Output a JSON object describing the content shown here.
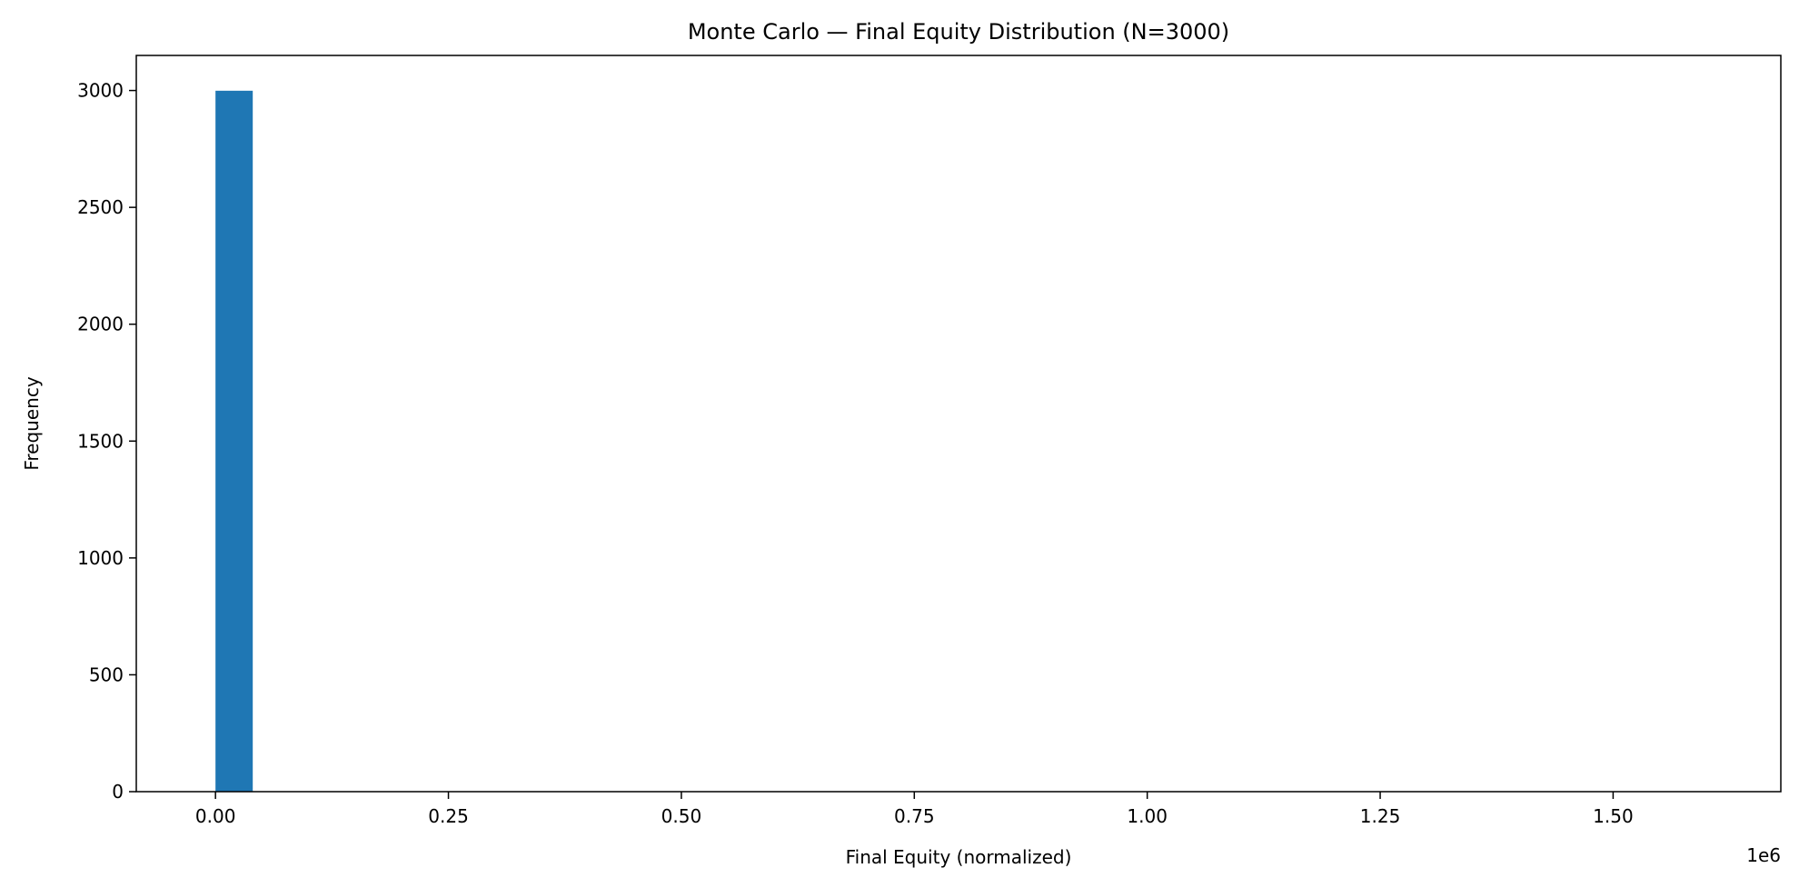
{
  "chart_data": {
    "type": "bar",
    "title": "Monte Carlo — Final Equity Distribution (N=3000)",
    "xlabel": "Final Equity (normalized)",
    "ylabel": "Frequency",
    "x_offset_label": "1e6",
    "xlim": [
      -85000,
      1680000
    ],
    "ylim": [
      0,
      3150
    ],
    "x_ticks": [
      0,
      250000,
      500000,
      750000,
      1000000,
      1250000,
      1500000
    ],
    "x_tick_labels": [
      "0.00",
      "0.25",
      "0.50",
      "0.75",
      "1.00",
      "1.25",
      "1.50"
    ],
    "y_ticks": [
      0,
      500,
      1000,
      1500,
      2000,
      2500,
      3000
    ],
    "y_tick_labels": [
      "0",
      "500",
      "1000",
      "1500",
      "2000",
      "2500",
      "3000"
    ],
    "bars": [
      {
        "x_start": 0,
        "x_end": 40000,
        "value": 2999
      }
    ],
    "bar_color": "#1f77b4",
    "grid": false,
    "legend": false
  }
}
